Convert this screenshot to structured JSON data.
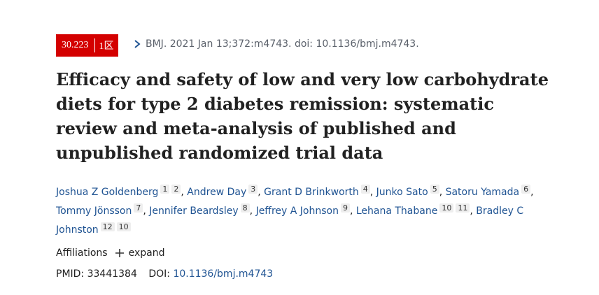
{
  "badge": {
    "impact_factor": "30.223",
    "zone": "1区"
  },
  "citation": "BMJ. 2021 Jan 13;372:m4743. doi: 10.1136/bmj.m4743.",
  "title": "Efficacy and safety of low and very low carbohydrate diets for type 2 diabetes remission: systematic review and meta-analysis of published and unpublished randomized trial data",
  "author_separator": ",",
  "authors": [
    {
      "name": "Joshua Z Goldenberg",
      "affiliations": [
        "1",
        "2"
      ]
    },
    {
      "name": "Andrew Day",
      "affiliations": [
        "3"
      ]
    },
    {
      "name": "Grant D Brinkworth",
      "affiliations": [
        "4"
      ]
    },
    {
      "name": "Junko Sato",
      "affiliations": [
        "5"
      ]
    },
    {
      "name": "Satoru Yamada",
      "affiliations": [
        "6"
      ]
    },
    {
      "name": "Tommy Jönsson",
      "affiliations": [
        "7"
      ]
    },
    {
      "name": "Jennifer Beardsley",
      "affiliations": [
        "8"
      ]
    },
    {
      "name": "Jeffrey A Johnson",
      "affiliations": [
        "9"
      ]
    },
    {
      "name": "Lehana Thabane",
      "affiliations": [
        "10",
        "11"
      ]
    },
    {
      "name": "Bradley C Johnston",
      "affiliations": [
        "12",
        "10"
      ]
    }
  ],
  "affiliations": {
    "label": "Affiliations",
    "action": "expand"
  },
  "ids": {
    "pmid_label": "PMID:",
    "pmid": "33441384",
    "doi_label": "DOI:",
    "doi": "10.1136/bmj.m4743"
  }
}
